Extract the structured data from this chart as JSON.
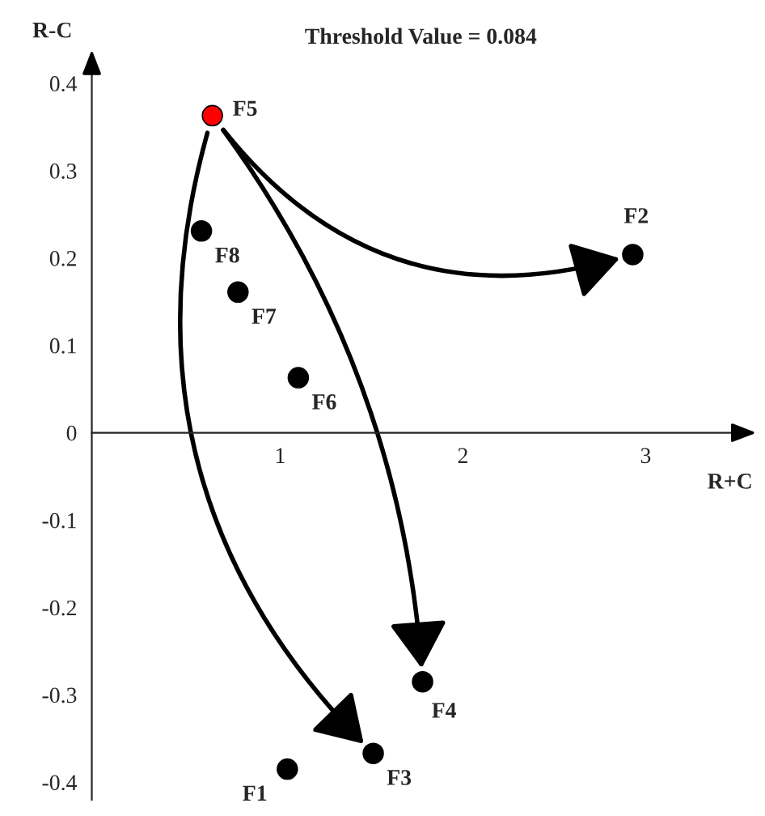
{
  "chart_data": {
    "type": "scatter",
    "title": "Threshold Value = 0.084",
    "xlabel": "R+C",
    "ylabel": "R-C",
    "x": [
      1.07,
      2.96,
      1.54,
      1.81,
      0.66,
      1.13,
      0.8,
      0.6
    ],
    "values": [
      -0.385,
      0.204,
      -0.367,
      -0.285,
      0.363,
      0.063,
      0.161,
      0.231
    ],
    "colors": [
      "#000000",
      "#000000",
      "#000000",
      "#000000",
      "#ff0000",
      "#000000",
      "#000000",
      "#000000"
    ],
    "annotations": [
      {
        "text": "F1",
        "x": 1.07,
        "y": -0.385
      },
      {
        "text": "F2",
        "x": 2.96,
        "y": 0.204
      },
      {
        "text": "F3",
        "x": 1.54,
        "y": -0.367
      },
      {
        "text": "F4",
        "x": 1.81,
        "y": -0.285
      },
      {
        "text": "F5",
        "x": 0.66,
        "y": 0.363
      },
      {
        "text": "F6",
        "x": 1.13,
        "y": 0.063
      },
      {
        "text": "F7",
        "x": 0.8,
        "y": 0.161
      },
      {
        "text": "F8",
        "x": 0.6,
        "y": 0.231
      }
    ],
    "xlim": [
      0,
      3.6
    ],
    "ylim": [
      -0.42,
      0.43
    ],
    "xticks": [
      1,
      2,
      3
    ],
    "yticks": [
      -0.4,
      -0.3,
      -0.2,
      -0.1,
      0,
      0.1,
      0.2,
      0.3,
      0.4
    ],
    "marker": "circle",
    "grid": false,
    "legend": false
  }
}
